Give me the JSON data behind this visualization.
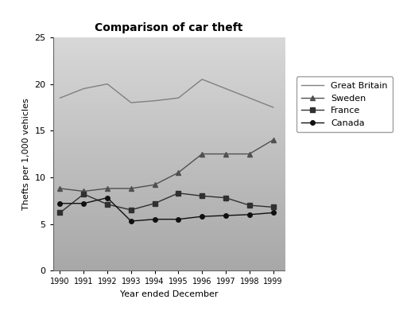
{
  "title": "Comparison of car theft",
  "xlabel": "Year ended December",
  "ylabel": "Thefts per 1,000 vehicles",
  "years": [
    1990,
    1991,
    1992,
    1993,
    1994,
    1995,
    1996,
    1997,
    1998,
    1999
  ],
  "series": {
    "Great Britain": {
      "values": [
        18.5,
        19.5,
        20.0,
        18.0,
        18.2,
        18.5,
        20.5,
        19.5,
        18.5,
        17.5
      ],
      "color": "#808080",
      "marker": null,
      "linestyle": "-"
    },
    "Sweden": {
      "values": [
        8.8,
        8.5,
        8.8,
        8.8,
        9.2,
        10.5,
        12.5,
        12.5,
        12.5,
        14.0
      ],
      "color": "#505050",
      "marker": "^",
      "linestyle": "-"
    },
    "France": {
      "values": [
        6.2,
        8.2,
        7.1,
        6.5,
        7.2,
        8.3,
        8.0,
        7.8,
        7.0,
        6.8
      ],
      "color": "#303030",
      "marker": "s",
      "linestyle": "-"
    },
    "Canada": {
      "values": [
        7.2,
        7.2,
        7.8,
        5.3,
        5.5,
        5.5,
        5.8,
        5.9,
        6.0,
        6.2
      ],
      "color": "#101010",
      "marker": "o",
      "linestyle": "-"
    }
  },
  "ylim": [
    0,
    25
  ],
  "yticks": [
    0,
    5,
    10,
    15,
    20,
    25
  ],
  "plot_bg_top": "#b0b0b0",
  "plot_bg_bottom": "#e8e8e8",
  "fig_bg": "#ffffff",
  "legend_order": [
    "Great Britain",
    "Sweden",
    "France",
    "Canada"
  ]
}
